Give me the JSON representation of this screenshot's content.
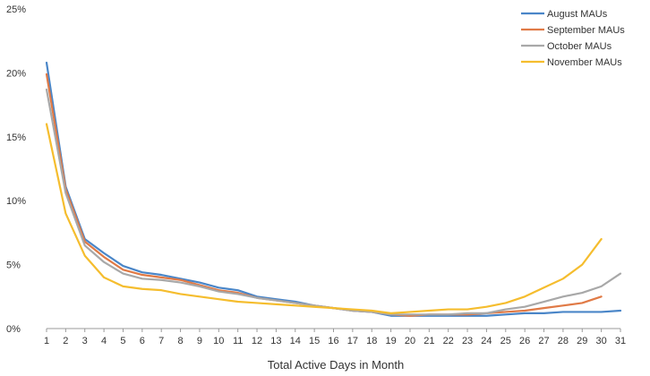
{
  "chart_data": {
    "type": "line",
    "title": "",
    "xlabel": "Total Active Days in Month",
    "ylabel": "",
    "x": [
      1,
      2,
      3,
      4,
      5,
      6,
      7,
      8,
      9,
      10,
      11,
      12,
      13,
      14,
      15,
      16,
      17,
      18,
      19,
      20,
      21,
      22,
      23,
      24,
      25,
      26,
      27,
      28,
      29,
      30,
      31
    ],
    "ylim": [
      0,
      25
    ],
    "yticks": [
      0,
      5,
      10,
      15,
      20,
      25
    ],
    "ytick_labels": [
      "0%",
      "5%",
      "10%",
      "15%",
      "20%",
      "25%"
    ],
    "grid": false,
    "legend_position": "top-right",
    "series": [
      {
        "name": "August MAUs",
        "color": "#4a86c8",
        "values": [
          20.8,
          11.1,
          7.0,
          5.9,
          4.9,
          4.4,
          4.2,
          3.9,
          3.6,
          3.2,
          3.0,
          2.5,
          2.3,
          2.1,
          1.8,
          1.6,
          1.4,
          1.3,
          1.0,
          1.0,
          1.0,
          1.0,
          1.0,
          1.0,
          1.1,
          1.2,
          1.2,
          1.3,
          1.3,
          1.3,
          1.4
        ]
      },
      {
        "name": "September MAUs",
        "color": "#e07a46",
        "values": [
          19.9,
          10.9,
          6.8,
          5.6,
          4.6,
          4.2,
          4.0,
          3.8,
          3.4,
          3.0,
          2.8,
          2.4,
          2.2,
          2.0,
          1.8,
          1.6,
          1.4,
          1.3,
          1.1,
          1.0,
          1.1,
          1.1,
          1.1,
          1.2,
          1.3,
          1.4,
          1.6,
          1.8,
          2.0,
          2.5,
          null
        ]
      },
      {
        "name": "October MAUs",
        "color": "#a8a8a8",
        "values": [
          18.7,
          10.6,
          6.5,
          5.2,
          4.3,
          3.9,
          3.8,
          3.6,
          3.3,
          2.9,
          2.7,
          2.4,
          2.2,
          2.0,
          1.8,
          1.6,
          1.4,
          1.3,
          1.1,
          1.1,
          1.1,
          1.1,
          1.2,
          1.2,
          1.5,
          1.7,
          2.1,
          2.5,
          2.8,
          3.3,
          4.3
        ]
      },
      {
        "name": "November MAUs",
        "color": "#f5bd2e",
        "values": [
          16.0,
          9.0,
          5.7,
          4.0,
          3.3,
          3.1,
          3.0,
          2.7,
          2.5,
          2.3,
          2.1,
          2.0,
          1.9,
          1.8,
          1.7,
          1.6,
          1.5,
          1.4,
          1.2,
          1.3,
          1.4,
          1.5,
          1.5,
          1.7,
          2.0,
          2.5,
          3.2,
          3.9,
          5.0,
          7.0,
          null
        ]
      }
    ]
  }
}
